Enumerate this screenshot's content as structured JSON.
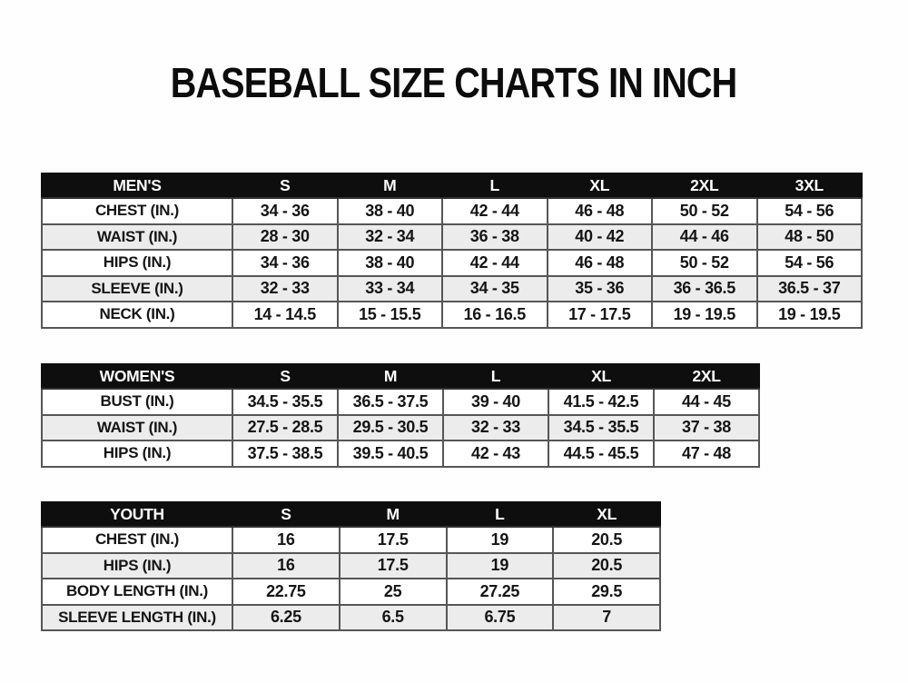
{
  "page": {
    "title": "BASEBALL SIZE CHARTS IN INCH",
    "unit": "INCH"
  },
  "colors": {
    "header_bg": "#0e0e0e",
    "header_text": "#ffffff",
    "row_alt_bg": "#ececec",
    "row_bg": "#ffffff",
    "border": "#565656",
    "text": "#151515"
  },
  "tables": [
    {
      "id": "mens",
      "group": "MEN'S",
      "header": [
        "MEN'S",
        "S",
        "M",
        "L",
        "XL",
        "2XL",
        "3XL"
      ],
      "rows": [
        [
          "CHEST (IN.)",
          "34 - 36",
          "38 - 40",
          "42 - 44",
          "46 - 48",
          "50 - 52",
          "54 - 56"
        ],
        [
          "WAIST (IN.)",
          "28 - 30",
          "32 - 34",
          "36 - 38",
          "40 - 42",
          "44 - 46",
          "48 - 50"
        ],
        [
          "HIPS (IN.)",
          "34 - 36",
          "38 - 40",
          "42 - 44",
          "46 - 48",
          "50 - 52",
          "54 - 56"
        ],
        [
          "SLEEVE (IN.)",
          "32 - 33",
          "33 - 34",
          "34 - 35",
          "35 - 36",
          "36 - 36.5",
          "36.5 - 37"
        ],
        [
          "NECK (IN.)",
          "14 - 14.5",
          "15 - 15.5",
          "16 - 16.5",
          "17 - 17.5",
          "19 - 19.5",
          "19 - 19.5"
        ]
      ]
    },
    {
      "id": "womens",
      "group": "WOMEN'S",
      "header": [
        "WOMEN'S",
        "S",
        "M",
        "L",
        "XL",
        "2XL"
      ],
      "rows": [
        [
          "BUST (IN.)",
          "34.5 - 35.5",
          "36.5 - 37.5",
          "39 - 40",
          "41.5 - 42.5",
          "44 - 45"
        ],
        [
          "WAIST (IN.)",
          "27.5 - 28.5",
          "29.5 - 30.5",
          "32 - 33",
          "34.5 - 35.5",
          "37 - 38"
        ],
        [
          "HIPS (IN.)",
          "37.5 - 38.5",
          "39.5 - 40.5",
          "42 - 43",
          "44.5 - 45.5",
          "47 - 48"
        ]
      ]
    },
    {
      "id": "youth",
      "group": "YOUTH",
      "header": [
        "YOUTH",
        "S",
        "M",
        "L",
        "XL"
      ],
      "rows": [
        [
          "CHEST (IN.)",
          "16",
          "17.5",
          "19",
          "20.5"
        ],
        [
          "HIPS (IN.)",
          "16",
          "17.5",
          "19",
          "20.5"
        ],
        [
          "BODY LENGTH (IN.)",
          "22.75",
          "25",
          "27.25",
          "29.5"
        ],
        [
          "SLEEVE LENGTH (IN.)",
          "6.25",
          "6.5",
          "6.75",
          "7"
        ]
      ]
    }
  ]
}
